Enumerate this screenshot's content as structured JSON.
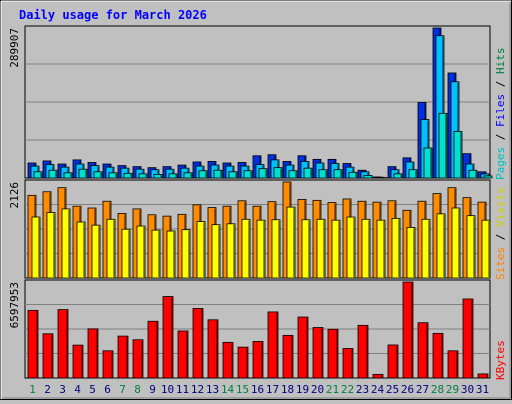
{
  "chart_data": {
    "type": "bar",
    "title": "Daily usage for March 2026",
    "categories": [
      "1",
      "2",
      "3",
      "4",
      "5",
      "6",
      "7",
      "8",
      "9",
      "10",
      "11",
      "12",
      "13",
      "14",
      "15",
      "16",
      "17",
      "18",
      "19",
      "20",
      "21",
      "22",
      "23",
      "24",
      "25",
      "26",
      "27",
      "28",
      "29",
      "30",
      "31"
    ],
    "weekend_days": [
      "1",
      "7",
      "8",
      "14",
      "15",
      "21",
      "22",
      "28",
      "29"
    ],
    "panels": {
      "top": {
        "max_label": "289907",
        "ylim": [
          0,
          289907
        ],
        "legend": [
          "Pages",
          "Files",
          "Hits"
        ],
        "series": [
          {
            "name": "Hits",
            "color": "#0030e0",
            "values": [
              29000,
              33000,
              27000,
              35000,
              30000,
              27000,
              24000,
              22000,
              20000,
              22000,
              25000,
              31000,
              32000,
              29000,
              30000,
              43000,
              45000,
              32000,
              43000,
              36000,
              36000,
              28000,
              15000,
              2000,
              22000,
              39000,
              146000,
              289907,
              203000,
              47000,
              12000
            ]
          },
          {
            "name": "Files",
            "color": "#00c0ff",
            "values": [
              23000,
              26000,
              21000,
              27000,
              24000,
              21000,
              19000,
              17000,
              16000,
              17000,
              19000,
              23000,
              25000,
              23000,
              23000,
              26000,
              35000,
              25000,
              32000,
              29000,
              28000,
              21000,
              12000,
              1500,
              16000,
              31000,
              113000,
              275000,
              186000,
              27000,
              8000
            ]
          },
          {
            "name": "Pages",
            "color": "#00e0d0",
            "values": [
              12000,
              15000,
              10000,
              17000,
              12000,
              10000,
              9000,
              8000,
              7000,
              8000,
              10000,
              14000,
              15000,
              12000,
              14000,
              18000,
              20000,
              14000,
              19000,
              16000,
              16000,
              11000,
              5000,
              800,
              8000,
              16000,
              58000,
              125000,
              90000,
              15000,
              4000
            ]
          }
        ]
      },
      "middle": {
        "max_label": "2126",
        "ylim": [
          0,
          2126
        ],
        "legend": [
          "Sites",
          "Visits"
        ],
        "series": [
          {
            "name": "Visits",
            "color": "#ff8c00",
            "values": [
              1830,
              1910,
              2000,
              1590,
              1550,
              1700,
              1430,
              1530,
              1400,
              1370,
              1410,
              1620,
              1560,
              1590,
              1710,
              1590,
              1690,
              2126,
              1740,
              1720,
              1670,
              1750,
              1700,
              1680,
              1710,
              1500,
              1700,
              1870,
              2000,
              1780,
              1680
            ]
          },
          {
            "name": "Sites",
            "color": "#ffff00",
            "values": [
              1350,
              1450,
              1530,
              1240,
              1170,
              1300,
              1080,
              1150,
              1060,
              1040,
              1070,
              1250,
              1180,
              1200,
              1300,
              1280,
              1290,
              1570,
              1290,
              1300,
              1280,
              1350,
              1300,
              1280,
              1320,
              1120,
              1300,
              1420,
              1550,
              1380,
              1280
            ]
          }
        ]
      },
      "bottom": {
        "max_label": "6597953",
        "ylim": [
          0,
          6597953
        ],
        "legend": [
          "KBytes"
        ],
        "series": [
          {
            "name": "KBytes",
            "color": "#ff0000",
            "values": [
              4650000,
              3040000,
              4700000,
              2260000,
              3380000,
              1870000,
              2880000,
              2630000,
              3900000,
              5600000,
              3230000,
              4780000,
              4000000,
              2450000,
              2120000,
              2510000,
              4540000,
              2930000,
              4190000,
              3470000,
              3350000,
              2030000,
              3620000,
              250000,
              2270000,
              6597953,
              3800000,
              3070000,
              1870000,
              5430000,
              280000
            ]
          }
        ]
      }
    },
    "colors": {
      "background": "#c0c0c0",
      "plot": "#c0c0c0",
      "grid": "#808080",
      "title": "#0000ff",
      "day_weekday": "#000080",
      "day_weekend": "#008040"
    }
  }
}
